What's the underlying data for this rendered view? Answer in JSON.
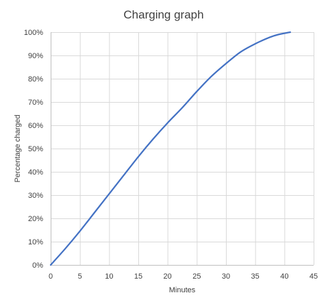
{
  "chart_data": {
    "type": "line",
    "title": "Charging graph",
    "xlabel": "Minutes",
    "ylabel": "Percentage charged",
    "xlim": [
      0,
      45
    ],
    "ylim": [
      0,
      1
    ],
    "x_ticks": [
      0,
      5,
      10,
      15,
      20,
      25,
      30,
      35,
      40,
      45
    ],
    "x_tick_labels": [
      "0",
      "5",
      "10",
      "15",
      "20",
      "25",
      "30",
      "35",
      "40",
      "45"
    ],
    "y_ticks": [
      0,
      0.1,
      0.2,
      0.3,
      0.4,
      0.5,
      0.6,
      0.7,
      0.8,
      0.9,
      1.0
    ],
    "y_tick_labels": [
      "0%",
      "10%",
      "20%",
      "30%",
      "40%",
      "50%",
      "60%",
      "70%",
      "80%",
      "90%",
      "100%"
    ],
    "grid": true,
    "legend": "none",
    "series": [
      {
        "color": "#4472c4",
        "x": [
          0,
          2.5,
          5,
          7.5,
          10,
          12.5,
          15,
          17.5,
          20,
          22.5,
          25,
          27.5,
          30,
          32.5,
          35,
          37.5,
          39,
          41
        ],
        "y": [
          0,
          0.07,
          0.145,
          0.225,
          0.305,
          0.385,
          0.465,
          0.54,
          0.61,
          0.675,
          0.745,
          0.81,
          0.865,
          0.915,
          0.95,
          0.978,
          0.99,
          1.0
        ]
      }
    ]
  }
}
